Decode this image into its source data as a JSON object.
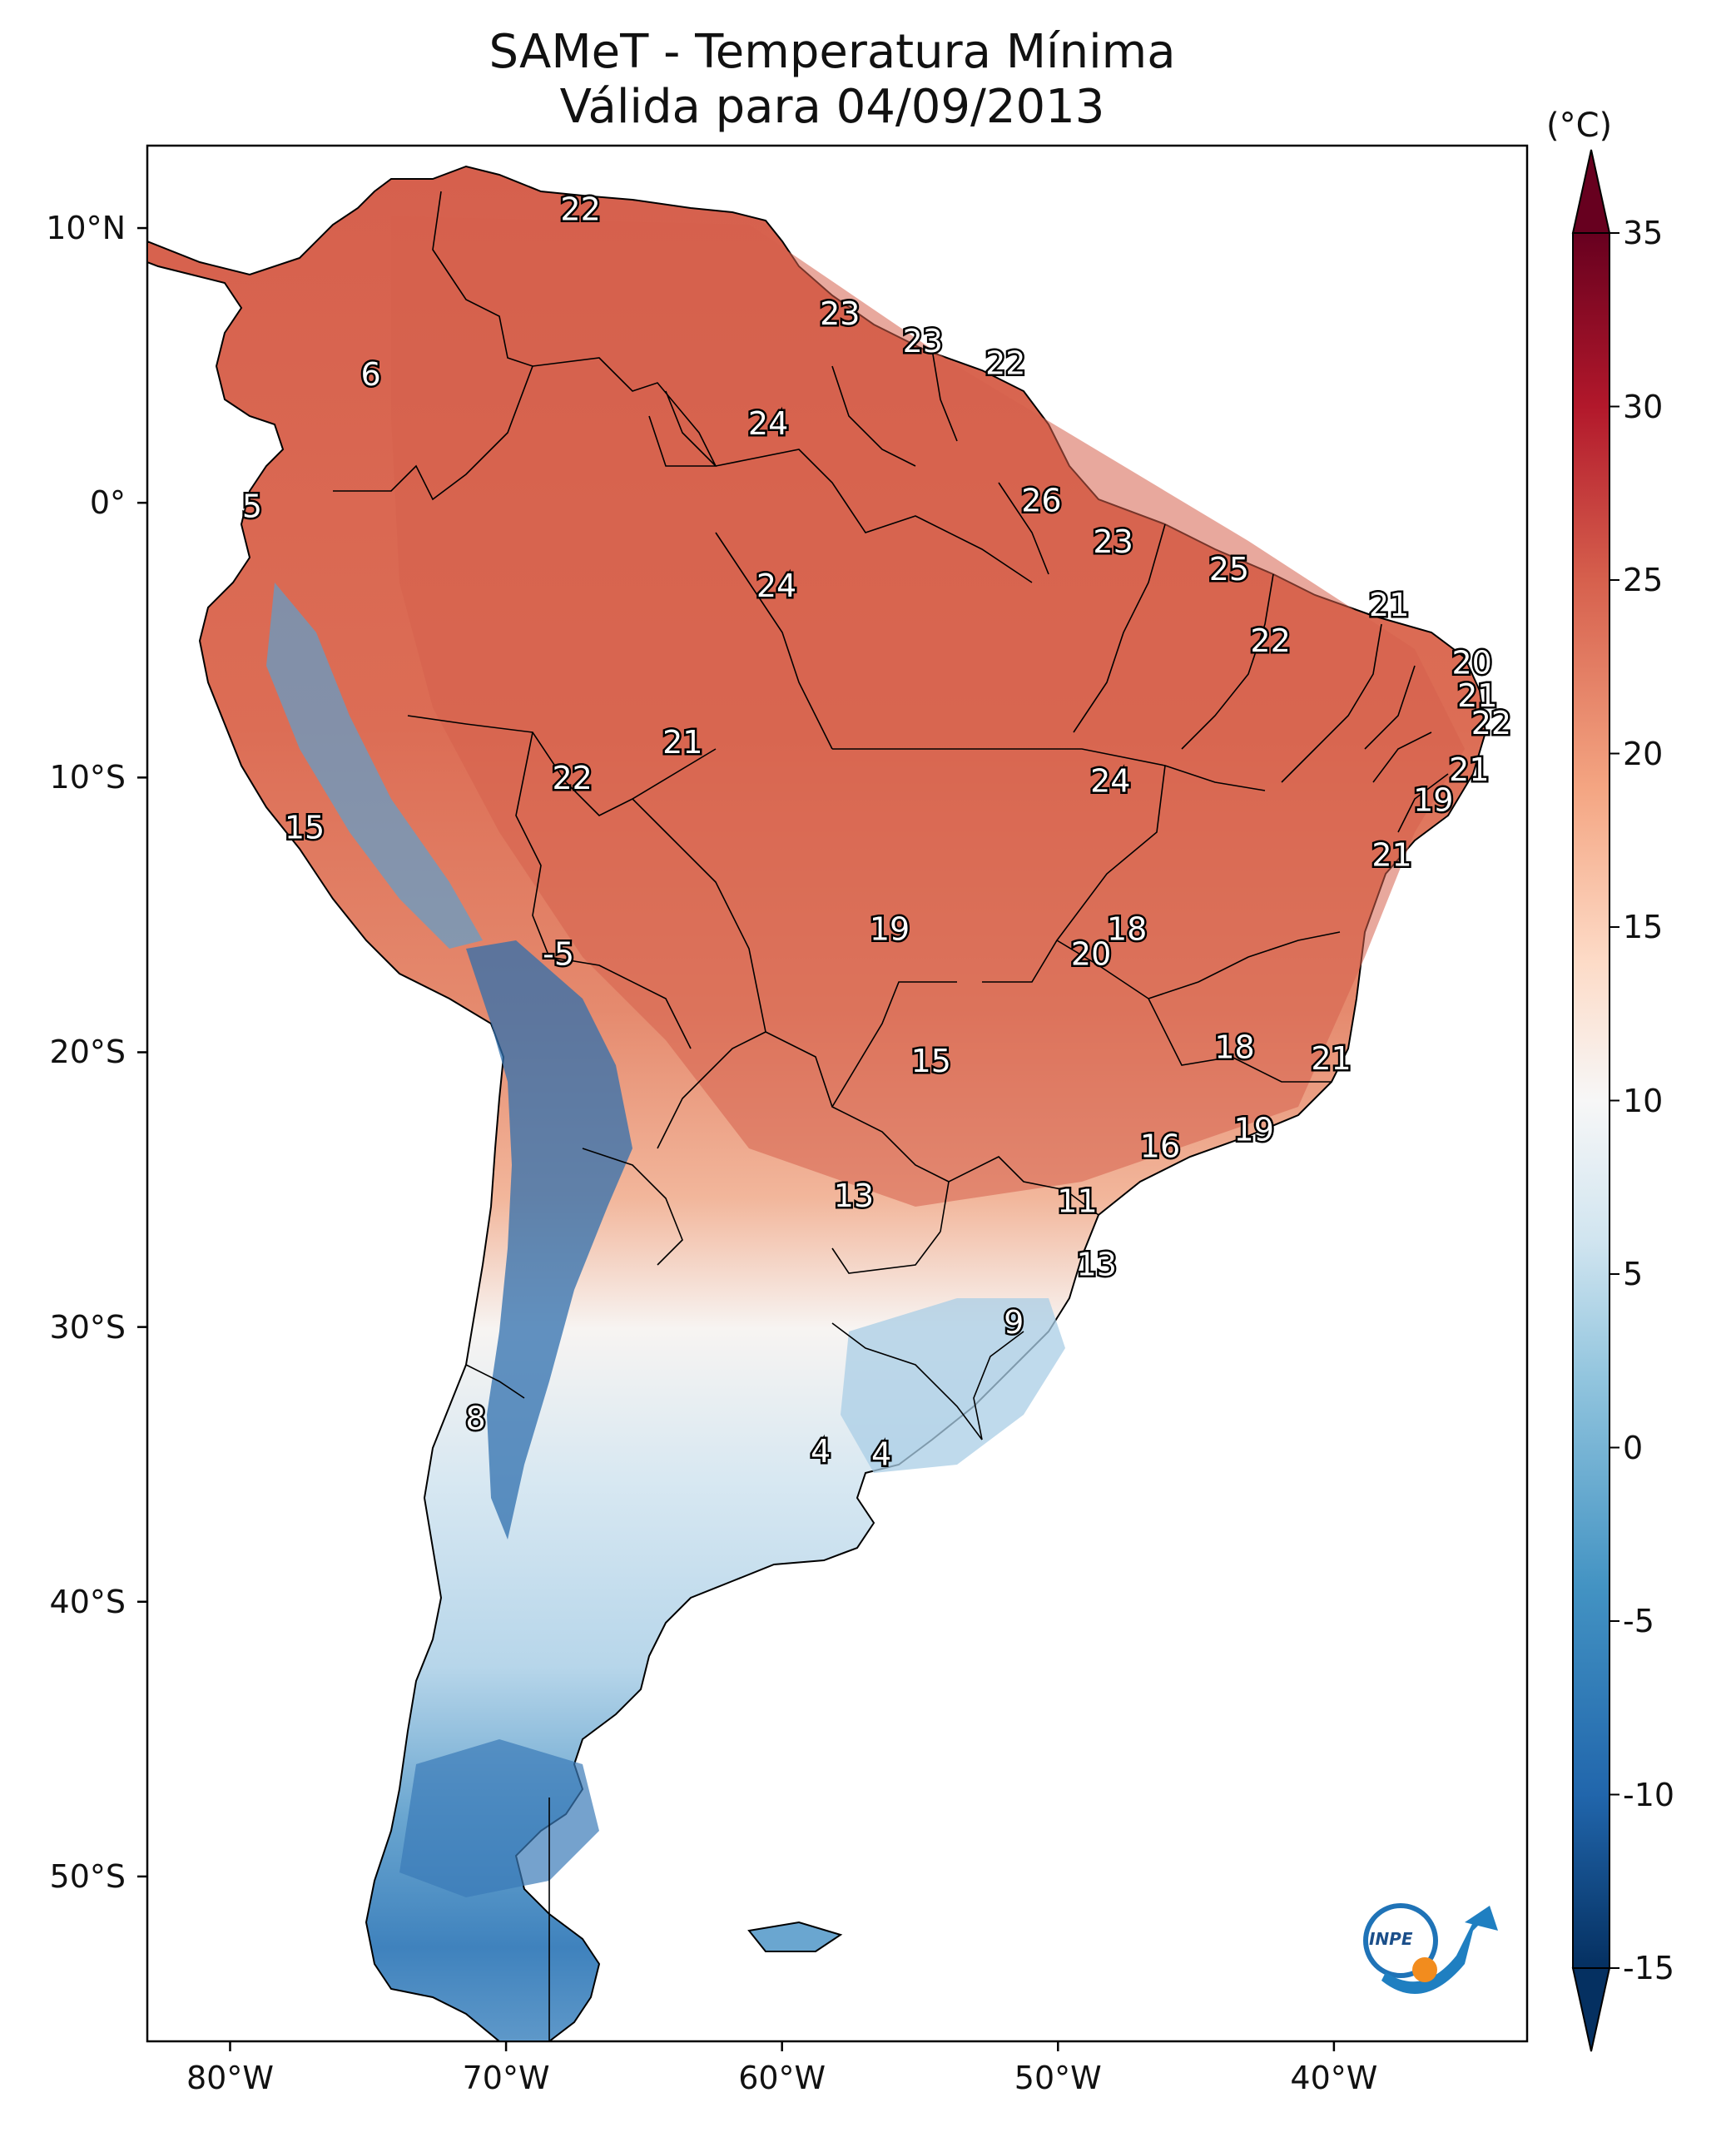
{
  "title_line1": "SAMeT - Temperatura Mínima",
  "title_line2": "Válida para 04/09/2013",
  "colorbar": {
    "unit": "(°C)",
    "ticks": [
      "35",
      "30",
      "25",
      "20",
      "15",
      "10",
      "5",
      "0",
      "-5",
      "-10",
      "-15"
    ],
    "min": -15,
    "max": 35,
    "colors": [
      "#053061",
      "#2166ac",
      "#4393c3",
      "#92c5de",
      "#d1e5f0",
      "#f7f7f7",
      "#fddbc7",
      "#f4a582",
      "#d6604d",
      "#b2182b",
      "#67001f"
    ]
  },
  "axes": {
    "lat_ticks": [
      "10°N",
      "0°",
      "10°S",
      "20°S",
      "30°S",
      "40°S",
      "50°S"
    ],
    "lon_ticks": [
      "80°W",
      "70°W",
      "60°W",
      "50°W",
      "40°W"
    ]
  },
  "logo_text": "INPE",
  "station_labels": [
    {
      "text": "22",
      "lon": -67.3,
      "lat": 10.6
    },
    {
      "text": "6",
      "lon": -74.9,
      "lat": 4.6
    },
    {
      "text": "23",
      "lon": -57.9,
      "lat": 6.8
    },
    {
      "text": "23",
      "lon": -54.9,
      "lat": 5.8
    },
    {
      "text": "22",
      "lon": -51.9,
      "lat": 5.0
    },
    {
      "text": "24",
      "lon": -60.5,
      "lat": 2.8
    },
    {
      "text": "5",
      "lon": -79.2,
      "lat": -0.2
    },
    {
      "text": "26",
      "lon": -50.6,
      "lat": 0.0
    },
    {
      "text": "23",
      "lon": -48.0,
      "lat": -1.5
    },
    {
      "text": "25",
      "lon": -43.8,
      "lat": -2.5
    },
    {
      "text": "24",
      "lon": -60.2,
      "lat": -3.1
    },
    {
      "text": "21",
      "lon": -38.0,
      "lat": -3.8
    },
    {
      "text": "22",
      "lon": -42.3,
      "lat": -5.1
    },
    {
      "text": "20",
      "lon": -35.0,
      "lat": -5.9
    },
    {
      "text": "21",
      "lon": -34.8,
      "lat": -7.1
    },
    {
      "text": "22",
      "lon": -34.3,
      "lat": -8.1
    },
    {
      "text": "21",
      "lon": -63.6,
      "lat": -8.8
    },
    {
      "text": "22",
      "lon": -67.6,
      "lat": -10.1
    },
    {
      "text": "24",
      "lon": -48.1,
      "lat": -10.2
    },
    {
      "text": "21",
      "lon": -35.1,
      "lat": -9.8
    },
    {
      "text": "19",
      "lon": -36.4,
      "lat": -10.9
    },
    {
      "text": "15",
      "lon": -77.3,
      "lat": -11.9
    },
    {
      "text": "21",
      "lon": -37.9,
      "lat": -12.9
    },
    {
      "text": "19",
      "lon": -56.1,
      "lat": -15.6
    },
    {
      "text": "18",
      "lon": -47.5,
      "lat": -15.6
    },
    {
      "text": "-5",
      "lon": -68.1,
      "lat": -16.5
    },
    {
      "text": "20",
      "lon": -48.8,
      "lat": -16.5
    },
    {
      "text": "15",
      "lon": -54.6,
      "lat": -20.4
    },
    {
      "text": "18",
      "lon": -43.6,
      "lat": -19.9
    },
    {
      "text": "21",
      "lon": -40.1,
      "lat": -20.3
    },
    {
      "text": "19",
      "lon": -42.9,
      "lat": -22.9
    },
    {
      "text": "16",
      "lon": -46.3,
      "lat": -23.5
    },
    {
      "text": "13",
      "lon": -57.4,
      "lat": -25.3
    },
    {
      "text": "11",
      "lon": -49.3,
      "lat": -25.5
    },
    {
      "text": "13",
      "lon": -48.6,
      "lat": -27.8
    },
    {
      "text": "9",
      "lon": -51.6,
      "lat": -29.9
    },
    {
      "text": "8",
      "lon": -71.1,
      "lat": -33.4
    },
    {
      "text": "4",
      "lon": -58.6,
      "lat": -34.6
    },
    {
      "text": "4",
      "lon": -56.4,
      "lat": -34.7
    }
  ]
}
